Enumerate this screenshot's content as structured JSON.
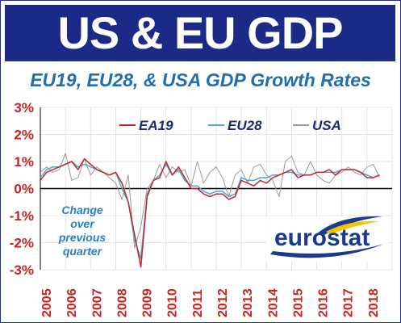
{
  "banner": {
    "title": "US & EU GDP"
  },
  "chart_data": {
    "type": "line",
    "title": "EU19, EU28, & USA GDP Growth Rates",
    "xlabel": "",
    "ylabel": "",
    "ylim": [
      -3,
      3
    ],
    "ytick_labels": [
      "3%",
      "2%",
      "1%",
      "0%",
      "-1%",
      "-2%",
      "-3%"
    ],
    "xtick_labels": [
      "2005",
      "2006",
      "2007",
      "2008",
      "2009",
      "2010",
      "2011",
      "2012",
      "2013",
      "2014",
      "2015",
      "2016",
      "2017",
      "2018"
    ],
    "x_start_year": 2005,
    "annotation": [
      "Change",
      "over",
      "previous",
      "quarter"
    ],
    "logo_text": "eurostat",
    "grid": true,
    "legend_position": "top",
    "series": [
      {
        "name": "EA19",
        "color": "#c1272d",
        "values": [
          0.3,
          0.6,
          0.7,
          0.8,
          0.9,
          1.0,
          0.7,
          1.1,
          0.9,
          0.7,
          0.6,
          0.5,
          0.6,
          0.2,
          -0.5,
          -1.7,
          -2.9,
          -0.3,
          0.3,
          0.4,
          1.0,
          0.5,
          0.8,
          0.4,
          0.0,
          0.0,
          -0.2,
          -0.3,
          -0.2,
          -0.2,
          -0.4,
          -0.3,
          0.3,
          0.2,
          0.1,
          0.3,
          0.2,
          0.4,
          0.5,
          0.6,
          0.7,
          0.4,
          0.5,
          0.5,
          0.6,
          0.6,
          0.7,
          0.5,
          0.7,
          0.7,
          0.7,
          0.6,
          0.4,
          0.4,
          0.5
        ]
      },
      {
        "name": "EU28",
        "color": "#4aa8c8",
        "values": [
          0.4,
          0.7,
          0.8,
          0.8,
          0.9,
          1.0,
          0.8,
          0.9,
          0.8,
          0.7,
          0.6,
          0.5,
          0.6,
          0.0,
          -0.5,
          -1.9,
          -2.6,
          -0.2,
          0.3,
          0.5,
          0.9,
          0.5,
          0.7,
          0.3,
          0.1,
          0.1,
          -0.1,
          -0.2,
          -0.1,
          -0.1,
          -0.3,
          -0.2,
          0.4,
          0.3,
          0.3,
          0.4,
          0.4,
          0.5,
          0.5,
          0.6,
          0.6,
          0.5,
          0.5,
          0.5,
          0.6,
          0.6,
          0.6,
          0.6,
          0.7,
          0.7,
          0.7,
          0.6,
          0.5,
          0.4,
          0.5
        ]
      },
      {
        "name": "USA",
        "color": "#999999",
        "values": [
          0.6,
          0.8,
          0.6,
          0.7,
          1.3,
          0.3,
          0.4,
          1.1,
          0.5,
          0.8,
          0.6,
          0.4,
          0.2,
          -0.4,
          0.5,
          -2.2,
          -1.4,
          0.0,
          0.3,
          0.9,
          0.4,
          0.8,
          0.6,
          0.7,
          0.1,
          1.0,
          0.2,
          0.6,
          0.8,
          0.4,
          -0.3,
          0.5,
          0.7,
          0.2,
          0.8,
          0.9,
          0.5,
          0.3,
          -0.3,
          1.0,
          1.2,
          0.6,
          0.5,
          1.0,
          0.5,
          0.3,
          0.2,
          0.5,
          0.6,
          0.8,
          0.6,
          0.5,
          0.8,
          0.9,
          0.4
        ]
      }
    ]
  }
}
